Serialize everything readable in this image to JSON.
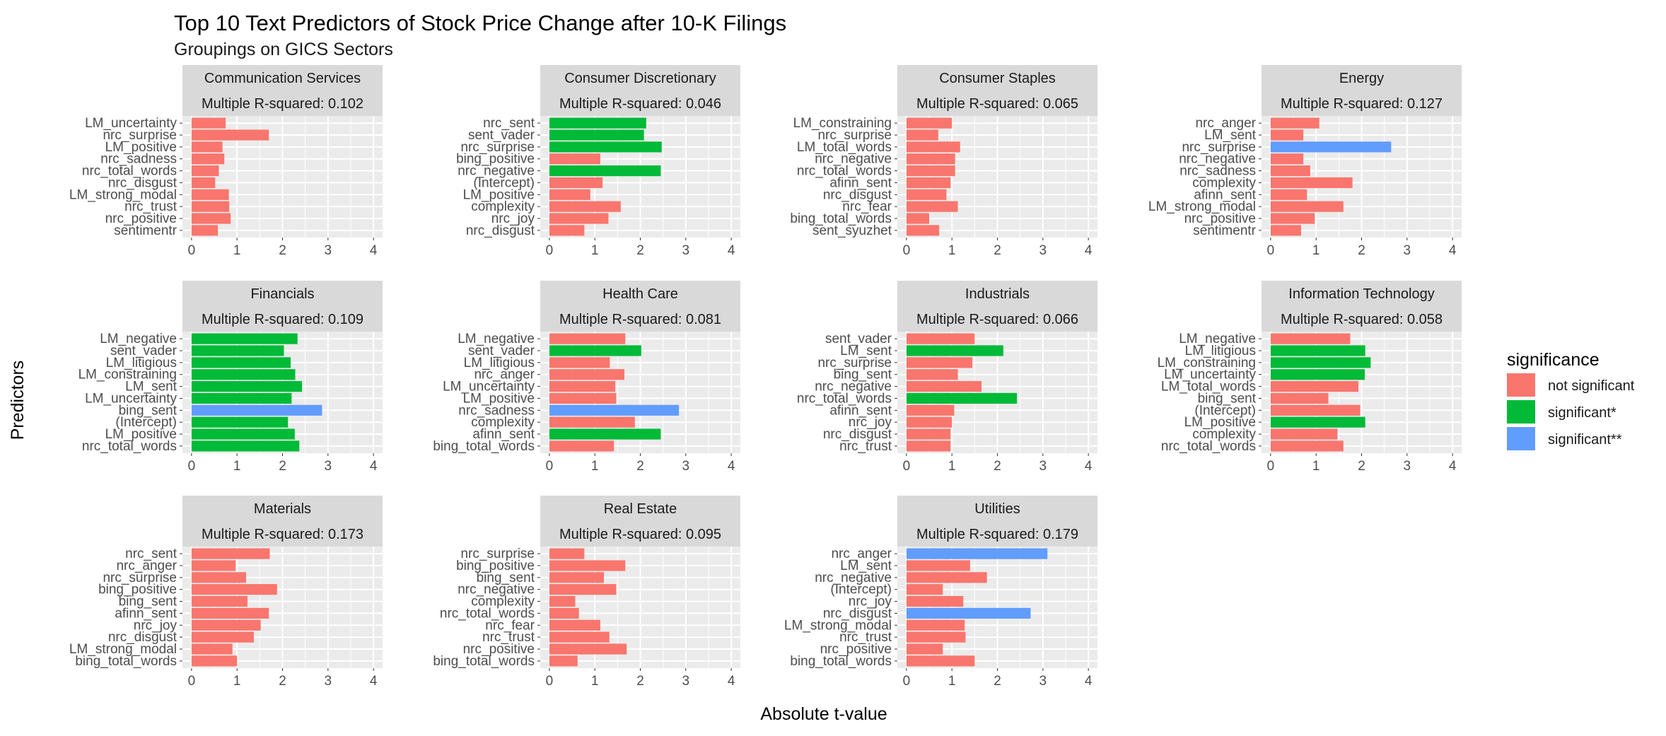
{
  "title": "Top 10 Text Predictors of Stock Price Change after 10-K Filings",
  "subtitle": "Groupings on GICS Sectors",
  "x_axis_label": "Absolute t-value",
  "y_axis_label": "Predictors",
  "legend": {
    "title": "significance",
    "items": [
      {
        "label": "not significant",
        "color": "#F8766D"
      },
      {
        "label": "significant*",
        "color": "#00BA38"
      },
      {
        "label": "significant**",
        "color": "#619CFF"
      }
    ]
  },
  "chart_data": {
    "type": "bar",
    "orientation": "horizontal",
    "xlim": [
      0,
      4
    ],
    "x_ticks": [
      "0",
      "1",
      "2",
      "3",
      "4"
    ],
    "grid": true,
    "legend_position": "right",
    "panels": [
      {
        "sector": "Communication Services",
        "r2_label": "Multiple R-squared: 0.102",
        "bars": [
          {
            "predictor": "LM_uncertainty",
            "value": 0.75,
            "sig": 0
          },
          {
            "predictor": "nrc_surprise",
            "value": 1.7,
            "sig": 0
          },
          {
            "predictor": "LM_positive",
            "value": 0.68,
            "sig": 0
          },
          {
            "predictor": "nrc_sadness",
            "value": 0.72,
            "sig": 0
          },
          {
            "predictor": "nrc_total_words",
            "value": 0.6,
            "sig": 0
          },
          {
            "predictor": "nrc_disgust",
            "value": 0.52,
            "sig": 0
          },
          {
            "predictor": "LM_strong_modal",
            "value": 0.82,
            "sig": 0
          },
          {
            "predictor": "nrc_trust",
            "value": 0.83,
            "sig": 0
          },
          {
            "predictor": "nrc_positive",
            "value": 0.86,
            "sig": 0
          },
          {
            "predictor": "sentimentr",
            "value": 0.58,
            "sig": 0
          }
        ]
      },
      {
        "sector": "Consumer Discretionary",
        "r2_label": "Multiple R-squared: 0.046",
        "bars": [
          {
            "predictor": "nrc_sent",
            "value": 2.13,
            "sig": 1
          },
          {
            "predictor": "sent_vader",
            "value": 2.08,
            "sig": 1
          },
          {
            "predictor": "nrc_surprise",
            "value": 2.47,
            "sig": 1
          },
          {
            "predictor": "bing_positive",
            "value": 1.12,
            "sig": 0
          },
          {
            "predictor": "nrc_negative",
            "value": 2.45,
            "sig": 1
          },
          {
            "predictor": "(Intercept)",
            "value": 1.17,
            "sig": 0
          },
          {
            "predictor": "LM_positive",
            "value": 0.9,
            "sig": 0
          },
          {
            "predictor": "complexity",
            "value": 1.57,
            "sig": 0
          },
          {
            "predictor": "nrc_joy",
            "value": 1.3,
            "sig": 0
          },
          {
            "predictor": "nrc_disgust",
            "value": 0.77,
            "sig": 0
          }
        ]
      },
      {
        "sector": "Consumer Staples",
        "r2_label": "Multiple R-squared: 0.065",
        "bars": [
          {
            "predictor": "LM_constraining",
            "value": 1.0,
            "sig": 0
          },
          {
            "predictor": "nrc_surprise",
            "value": 0.7,
            "sig": 0
          },
          {
            "predictor": "LM_total_words",
            "value": 1.18,
            "sig": 0
          },
          {
            "predictor": "nrc_negative",
            "value": 1.07,
            "sig": 0
          },
          {
            "predictor": "nrc_total_words",
            "value": 1.07,
            "sig": 0
          },
          {
            "predictor": "afinn_sent",
            "value": 0.97,
            "sig": 0
          },
          {
            "predictor": "nrc_disgust",
            "value": 0.88,
            "sig": 0
          },
          {
            "predictor": "nrc_fear",
            "value": 1.13,
            "sig": 0
          },
          {
            "predictor": "bing_total_words",
            "value": 0.5,
            "sig": 0
          },
          {
            "predictor": "sent_syuzhet",
            "value": 0.72,
            "sig": 0
          }
        ]
      },
      {
        "sector": "Energy",
        "r2_label": "Multiple R-squared: 0.127",
        "bars": [
          {
            "predictor": "nrc_anger",
            "value": 1.07,
            "sig": 0
          },
          {
            "predictor": "LM_sent",
            "value": 0.72,
            "sig": 0
          },
          {
            "predictor": "nrc_surprise",
            "value": 2.65,
            "sig": 2
          },
          {
            "predictor": "nrc_negative",
            "value": 0.72,
            "sig": 0
          },
          {
            "predictor": "nrc_sadness",
            "value": 0.87,
            "sig": 0
          },
          {
            "predictor": "complexity",
            "value": 1.8,
            "sig": 0
          },
          {
            "predictor": "afinn_sent",
            "value": 0.8,
            "sig": 0
          },
          {
            "predictor": "LM_strong_modal",
            "value": 1.6,
            "sig": 0
          },
          {
            "predictor": "nrc_positive",
            "value": 0.97,
            "sig": 0
          },
          {
            "predictor": "sentimentr",
            "value": 0.67,
            "sig": 0
          }
        ]
      },
      {
        "sector": "Financials",
        "r2_label": "Multiple R-squared: 0.109",
        "bars": [
          {
            "predictor": "LM_negative",
            "value": 2.33,
            "sig": 1
          },
          {
            "predictor": "sent_vader",
            "value": 2.03,
            "sig": 1
          },
          {
            "predictor": "LM_litigious",
            "value": 2.18,
            "sig": 1
          },
          {
            "predictor": "LM_constraining",
            "value": 2.28,
            "sig": 1
          },
          {
            "predictor": "LM_sent",
            "value": 2.43,
            "sig": 1
          },
          {
            "predictor": "LM_uncertainty",
            "value": 2.2,
            "sig": 1
          },
          {
            "predictor": "bing_sent",
            "value": 2.87,
            "sig": 2
          },
          {
            "predictor": "(Intercept)",
            "value": 2.12,
            "sig": 1
          },
          {
            "predictor": "LM_positive",
            "value": 2.27,
            "sig": 1
          },
          {
            "predictor": "nrc_total_words",
            "value": 2.37,
            "sig": 1
          }
        ]
      },
      {
        "sector": "Health Care",
        "r2_label": "Multiple R-squared: 0.081",
        "bars": [
          {
            "predictor": "LM_negative",
            "value": 1.67,
            "sig": 0
          },
          {
            "predictor": "sent_vader",
            "value": 2.02,
            "sig": 1
          },
          {
            "predictor": "LM_litigious",
            "value": 1.33,
            "sig": 0
          },
          {
            "predictor": "nrc_anger",
            "value": 1.65,
            "sig": 0
          },
          {
            "predictor": "LM_uncertainty",
            "value": 1.45,
            "sig": 0
          },
          {
            "predictor": "LM_positive",
            "value": 1.47,
            "sig": 0
          },
          {
            "predictor": "nrc_sadness",
            "value": 2.85,
            "sig": 2
          },
          {
            "predictor": "complexity",
            "value": 1.88,
            "sig": 0
          },
          {
            "predictor": "afinn_sent",
            "value": 2.45,
            "sig": 1
          },
          {
            "predictor": "bing_total_words",
            "value": 1.42,
            "sig": 0
          }
        ]
      },
      {
        "sector": "Industrials",
        "r2_label": "Multiple R-squared: 0.066",
        "bars": [
          {
            "predictor": "sent_vader",
            "value": 1.5,
            "sig": 0
          },
          {
            "predictor": "LM_sent",
            "value": 2.13,
            "sig": 1
          },
          {
            "predictor": "nrc_surprise",
            "value": 1.45,
            "sig": 0
          },
          {
            "predictor": "bing_sent",
            "value": 1.13,
            "sig": 0
          },
          {
            "predictor": "nrc_negative",
            "value": 1.65,
            "sig": 0
          },
          {
            "predictor": "nrc_total_words",
            "value": 2.43,
            "sig": 1
          },
          {
            "predictor": "afinn_sent",
            "value": 1.05,
            "sig": 0
          },
          {
            "predictor": "nrc_joy",
            "value": 1.0,
            "sig": 0
          },
          {
            "predictor": "nrc_disgust",
            "value": 0.97,
            "sig": 0
          },
          {
            "predictor": "nrc_trust",
            "value": 0.97,
            "sig": 0
          }
        ]
      },
      {
        "sector": "Information Technology",
        "r2_label": "Multiple R-squared: 0.058",
        "bars": [
          {
            "predictor": "LM_negative",
            "value": 1.75,
            "sig": 0
          },
          {
            "predictor": "LM_litigious",
            "value": 2.08,
            "sig": 1
          },
          {
            "predictor": "LM_constraining",
            "value": 2.2,
            "sig": 1
          },
          {
            "predictor": "LM_uncertainty",
            "value": 2.07,
            "sig": 1
          },
          {
            "predictor": "LM_total_words",
            "value": 1.93,
            "sig": 0
          },
          {
            "predictor": "bing_sent",
            "value": 1.27,
            "sig": 0
          },
          {
            "predictor": "(Intercept)",
            "value": 1.97,
            "sig": 0
          },
          {
            "predictor": "LM_positive",
            "value": 2.08,
            "sig": 1
          },
          {
            "predictor": "complexity",
            "value": 1.47,
            "sig": 0
          },
          {
            "predictor": "nrc_total_words",
            "value": 1.6,
            "sig": 0
          }
        ]
      },
      {
        "sector": "Materials",
        "r2_label": "Multiple R-squared: 0.173",
        "bars": [
          {
            "predictor": "nrc_sent",
            "value": 1.72,
            "sig": 0
          },
          {
            "predictor": "nrc_anger",
            "value": 0.97,
            "sig": 0
          },
          {
            "predictor": "nrc_surprise",
            "value": 1.2,
            "sig": 0
          },
          {
            "predictor": "bing_positive",
            "value": 1.88,
            "sig": 0
          },
          {
            "predictor": "bing_sent",
            "value": 1.23,
            "sig": 0
          },
          {
            "predictor": "afinn_sent",
            "value": 1.7,
            "sig": 0
          },
          {
            "predictor": "nrc_joy",
            "value": 1.52,
            "sig": 0
          },
          {
            "predictor": "nrc_disgust",
            "value": 1.37,
            "sig": 0
          },
          {
            "predictor": "LM_strong_modal",
            "value": 0.9,
            "sig": 0
          },
          {
            "predictor": "bing_total_words",
            "value": 1.0,
            "sig": 0
          }
        ]
      },
      {
        "sector": "Real Estate",
        "r2_label": "Multiple R-squared: 0.095",
        "bars": [
          {
            "predictor": "nrc_surprise",
            "value": 0.77,
            "sig": 0
          },
          {
            "predictor": "bing_positive",
            "value": 1.67,
            "sig": 0
          },
          {
            "predictor": "bing_sent",
            "value": 1.2,
            "sig": 0
          },
          {
            "predictor": "nrc_negative",
            "value": 1.47,
            "sig": 0
          },
          {
            "predictor": "complexity",
            "value": 0.57,
            "sig": 0
          },
          {
            "predictor": "nrc_total_words",
            "value": 0.65,
            "sig": 0
          },
          {
            "predictor": "nrc_fear",
            "value": 1.12,
            "sig": 0
          },
          {
            "predictor": "nrc_trust",
            "value": 1.32,
            "sig": 0
          },
          {
            "predictor": "nrc_positive",
            "value": 1.7,
            "sig": 0
          },
          {
            "predictor": "bing_total_words",
            "value": 0.62,
            "sig": 0
          }
        ]
      },
      {
        "sector": "Utilities",
        "r2_label": "Multiple R-squared: 0.179",
        "bars": [
          {
            "predictor": "nrc_anger",
            "value": 3.1,
            "sig": 2
          },
          {
            "predictor": "LM_sent",
            "value": 1.4,
            "sig": 0
          },
          {
            "predictor": "nrc_negative",
            "value": 1.77,
            "sig": 0
          },
          {
            "predictor": "(Intercept)",
            "value": 0.8,
            "sig": 0
          },
          {
            "predictor": "nrc_joy",
            "value": 1.25,
            "sig": 0
          },
          {
            "predictor": "nrc_disgust",
            "value": 2.73,
            "sig": 2
          },
          {
            "predictor": "LM_strong_modal",
            "value": 1.28,
            "sig": 0
          },
          {
            "predictor": "nrc_trust",
            "value": 1.3,
            "sig": 0
          },
          {
            "predictor": "nrc_positive",
            "value": 0.8,
            "sig": 0
          },
          {
            "predictor": "bing_total_words",
            "value": 1.5,
            "sig": 0
          }
        ]
      }
    ]
  }
}
